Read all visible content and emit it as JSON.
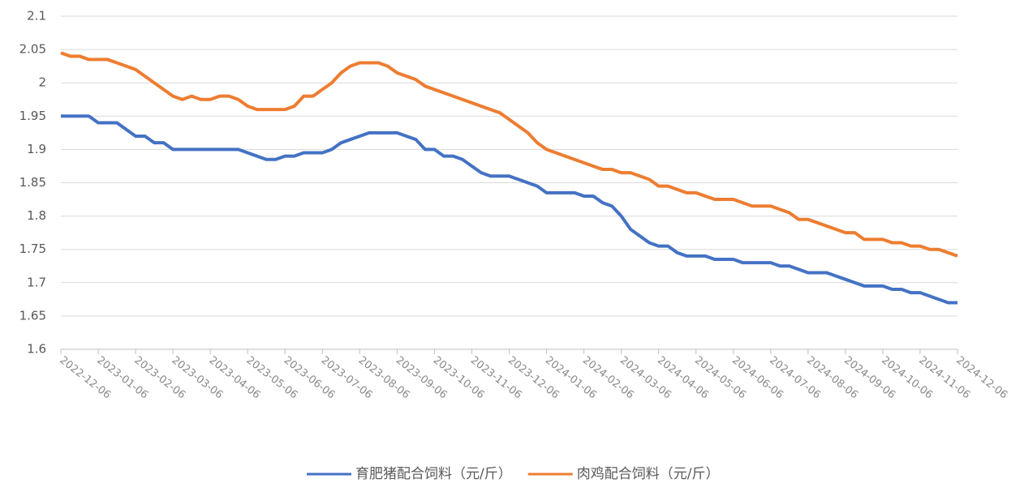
{
  "chart_data": {
    "type": "line",
    "categories": [
      "2022-12-06",
      null,
      null,
      null,
      "2023-01-06",
      null,
      null,
      null,
      "2023-02-06",
      null,
      null,
      null,
      "2023-03-06",
      null,
      null,
      null,
      "2023-04-06",
      null,
      null,
      null,
      "2023-05-06",
      null,
      null,
      null,
      "2023-06-06",
      null,
      null,
      null,
      "2023-07-06",
      null,
      null,
      null,
      "2023-08-06",
      null,
      null,
      null,
      "2023-09-06",
      null,
      null,
      null,
      "2023-10-06",
      null,
      null,
      null,
      "2023-11-06",
      null,
      null,
      null,
      "2023-12-06",
      null,
      null,
      null,
      "2024-01-06",
      null,
      null,
      null,
      "2024-02-06",
      null,
      null,
      null,
      "2024-03-06",
      null,
      null,
      null,
      "2024-04-06",
      null,
      null,
      null,
      "2024-05-06",
      null,
      null,
      null,
      "2024-06-06",
      null,
      null,
      null,
      "2024-07-06",
      null,
      null,
      null,
      "2024-08-06",
      null,
      null,
      null,
      "2024-09-06",
      null,
      null,
      null,
      "2024-10-06",
      null,
      null,
      null,
      "2024-11-06",
      null,
      null,
      null,
      "2024-12-06"
    ],
    "series": [
      {
        "name": "育肥猪配合饲料（元/斤）",
        "color": "#4472c4",
        "values": [
          1.95,
          1.95,
          1.95,
          1.95,
          1.94,
          1.94,
          1.94,
          1.93,
          1.92,
          1.92,
          1.91,
          1.91,
          1.9,
          1.9,
          1.9,
          1.9,
          1.9,
          1.9,
          1.9,
          1.9,
          1.895,
          1.89,
          1.885,
          1.885,
          1.89,
          1.89,
          1.895,
          1.895,
          1.895,
          1.9,
          1.91,
          1.915,
          1.92,
          1.925,
          1.925,
          1.925,
          1.925,
          1.92,
          1.915,
          1.9,
          1.9,
          1.89,
          1.89,
          1.885,
          1.875,
          1.865,
          1.86,
          1.86,
          1.86,
          1.855,
          1.85,
          1.845,
          1.835,
          1.835,
          1.835,
          1.835,
          1.83,
          1.83,
          1.82,
          1.815,
          1.8,
          1.78,
          1.77,
          1.76,
          1.755,
          1.755,
          1.745,
          1.74,
          1.74,
          1.74,
          1.735,
          1.735,
          1.735,
          1.73,
          1.73,
          1.73,
          1.73,
          1.725,
          1.725,
          1.72,
          1.715,
          1.715,
          1.715,
          1.71,
          1.705,
          1.7,
          1.695,
          1.695,
          1.695,
          1.69,
          1.69,
          1.685,
          1.685,
          1.68,
          1.675,
          1.67,
          1.67
        ]
      },
      {
        "name": "肉鸡配合饲料（元/斤）",
        "color": "#ed7d31",
        "values": [
          2.045,
          2.04,
          2.04,
          2.035,
          2.035,
          2.035,
          2.03,
          2.025,
          2.02,
          2.01,
          2.0,
          1.99,
          1.98,
          1.975,
          1.98,
          1.975,
          1.975,
          1.98,
          1.98,
          1.975,
          1.965,
          1.96,
          1.96,
          1.96,
          1.96,
          1.965,
          1.98,
          1.98,
          1.99,
          2.0,
          2.015,
          2.025,
          2.03,
          2.03,
          2.03,
          2.025,
          2.015,
          2.01,
          2.005,
          1.995,
          1.99,
          1.985,
          1.98,
          1.975,
          1.97,
          1.965,
          1.96,
          1.955,
          1.945,
          1.935,
          1.925,
          1.91,
          1.9,
          1.895,
          1.89,
          1.885,
          1.88,
          1.875,
          1.87,
          1.87,
          1.865,
          1.865,
          1.86,
          1.855,
          1.845,
          1.845,
          1.84,
          1.835,
          1.835,
          1.83,
          1.825,
          1.825,
          1.825,
          1.82,
          1.815,
          1.815,
          1.815,
          1.81,
          1.805,
          1.795,
          1.795,
          1.79,
          1.785,
          1.78,
          1.775,
          1.775,
          1.765,
          1.765,
          1.765,
          1.76,
          1.76,
          1.755,
          1.755,
          1.75,
          1.75,
          1.745,
          1.74
        ]
      }
    ],
    "ylim": [
      1.6,
      2.1
    ],
    "yticks": [
      1.6,
      1.65,
      1.7,
      1.75,
      1.8,
      1.85,
      1.9,
      1.95,
      2,
      2.05,
      2.1
    ],
    "grid": true,
    "legend": "bottom"
  }
}
